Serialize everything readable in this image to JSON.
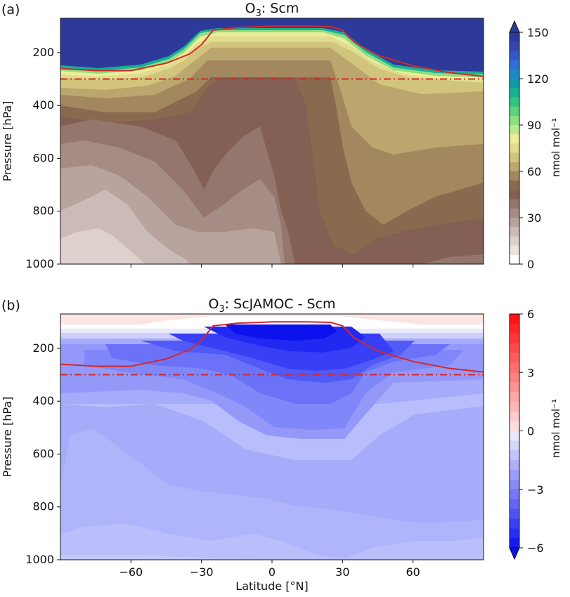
{
  "chart_data": [
    {
      "type": "contour",
      "panel": "(a)",
      "title": {
        "species": "O",
        "sub": "3",
        "rest": ": Scm"
      },
      "xlabel": "",
      "ylabel": "Pressure [hPa]",
      "xlim": [
        -90,
        90
      ],
      "ylim": [
        1000,
        70
      ],
      "y_scale": "linear-inverted",
      "yticks": [
        "200",
        "400",
        "600",
        "800",
        "1000"
      ],
      "ytick_values": [
        200,
        400,
        600,
        800,
        1000
      ],
      "xtick_values": [
        -60,
        -30,
        0,
        30,
        60
      ],
      "xticklabels_shown": false,
      "colorbar": {
        "label": "nmol mol⁻¹",
        "ticks": [
          "0",
          "30",
          "60",
          "90",
          "120",
          "150"
        ],
        "tick_values": [
          0,
          30,
          60,
          90,
          120,
          150
        ],
        "levels": [
          0,
          6,
          12,
          18,
          24,
          30,
          36,
          42,
          48,
          54,
          60,
          66,
          72,
          78,
          84,
          90,
          96,
          102,
          108,
          114,
          120,
          126,
          132,
          138,
          144,
          150
        ],
        "extend": "max",
        "colors": [
          "#ffffff",
          "#ece2e0",
          "#ddd0cd",
          "#cbbbb6",
          "#b8a39d",
          "#a58c84",
          "#94766c",
          "#845f54",
          "#8a6a4f",
          "#a3875e",
          "#bba66d",
          "#d1c47c",
          "#e2dc8e",
          "#eced98",
          "#b8ea8e",
          "#8fde82",
          "#5dd27a",
          "#2fc47f",
          "#17b194",
          "#109aa8",
          "#1f86c8",
          "#2f6fd6",
          "#3557c5",
          "#3845ad",
          "#2e3a9a"
        ]
      },
      "tropopause_line": {
        "color": "#d62728",
        "lat": [
          -90,
          -75,
          -60,
          -45,
          -35,
          -30,
          -25,
          -15,
          0,
          15,
          25,
          30,
          35,
          45,
          60,
          75,
          90
        ],
        "pressure": [
          260,
          268,
          268,
          240,
          205,
          170,
          115,
          105,
          100,
          100,
          102,
          115,
          160,
          210,
          250,
          275,
          290
        ]
      },
      "reference_pressure": {
        "style": "dash-dot",
        "color": "#d62728",
        "value": 300
      }
    },
    {
      "type": "contour",
      "panel": "(b)",
      "title": {
        "species": "O",
        "sub": "3",
        "rest": ": ScJAMOC - Scm"
      },
      "xlabel": "Latitude [°N]",
      "ylabel": "Pressure [hPa]",
      "xlim": [
        -90,
        90
      ],
      "ylim": [
        1000,
        70
      ],
      "y_scale": "linear-inverted",
      "yticks": [
        "200",
        "400",
        "600",
        "800",
        "1000"
      ],
      "ytick_values": [
        200,
        400,
        600,
        800,
        1000
      ],
      "xticks": [
        "−60",
        "−30",
        "0",
        "30",
        "60"
      ],
      "xtick_values": [
        -60,
        -30,
        0,
        30,
        60
      ],
      "colorbar": {
        "label": "nmol mol⁻¹",
        "ticks": [
          "−6",
          "−3",
          "0",
          "3",
          "6"
        ],
        "tick_values": [
          -6,
          -3,
          0,
          3,
          6
        ],
        "levels": [
          -6,
          -5.5,
          -5,
          -4.5,
          -4,
          -3.5,
          -3,
          -2.5,
          -2,
          -1.5,
          -1,
          -0.5,
          0,
          0.5,
          1,
          1.5,
          2,
          2.5,
          3,
          3.5,
          4,
          4.5,
          5,
          5.5,
          6
        ],
        "extend": "both"
      },
      "tropopause_line": {
        "color": "#d62728",
        "lat": [
          -90,
          -75,
          -60,
          -45,
          -35,
          -30,
          -25,
          -15,
          0,
          15,
          25,
          30,
          35,
          45,
          60,
          75,
          90
        ],
        "pressure": [
          260,
          268,
          268,
          240,
          205,
          170,
          115,
          105,
          100,
          100,
          102,
          115,
          160,
          210,
          250,
          275,
          290
        ]
      },
      "reference_pressure": {
        "style": "dash-dot",
        "color": "#d62728",
        "value": 300
      }
    }
  ]
}
